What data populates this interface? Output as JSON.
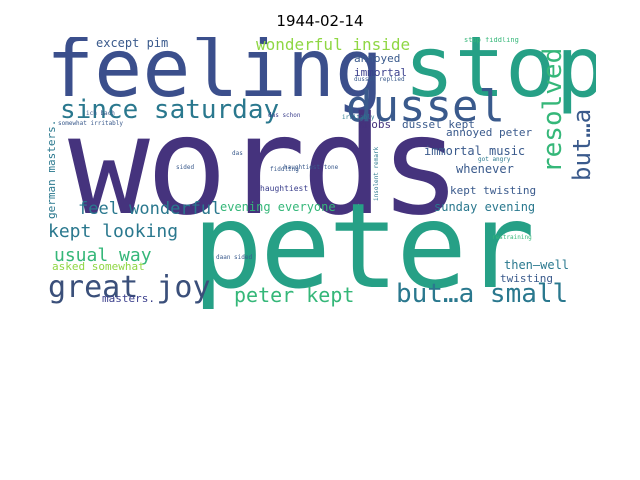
{
  "title": "1944-02-14",
  "palette": {
    "indigo": "#3b3f8c",
    "navy": "#45337d",
    "slate": "#3a5a8c",
    "teal": "#2a788e",
    "sea": "#26a086",
    "green": "#35b779",
    "lime": "#8fd744",
    "yellow": "#c8e020"
  },
  "words": {
    "words": "words",
    "peter": "peter",
    "feeling": "feeling",
    "stop": "stop",
    "dussel": "dussel",
    "since_saturday": "since saturday",
    "but_a_1": "but…a",
    "but_a_2": "but…a small",
    "resolved": "resolved",
    "great_joy": "great joy",
    "peter_kept": "peter kept",
    "kept_looking": "kept looking",
    "feel_wonderful": "feel wonderful",
    "usual_way": "usual way",
    "wonderful_inside": "wonderful inside",
    "except_pim": "except pim",
    "annoyed": "annoyed",
    "immortal": "immortal",
    "dussel_kept": "dussel kept",
    "knobs": "knobs",
    "annoyed_peter": "annoyed peter",
    "immortal_music": "immortal music",
    "whenever": "whenever",
    "kept_twisting": "kept twisting",
    "sunday_evening": "sunday evening",
    "evening_everyone": "evening everyone",
    "then_well": "then—well",
    "twisting": "twisting",
    "asked_somewhat": "asked somewhat",
    "masters": "masters.",
    "german_masters": "german masters.",
    "haughtiest": "haughtiest",
    "haughtiest_tone": "haughtiest tone",
    "fiddling": "fiddling",
    "irritably": "irritably",
    "restraining": "restraining",
    "got_angry": "got angry",
    "das_schon": "das schon",
    "stop_fiddling": "stop fiddling",
    "dussel_replied": "dussel replied",
    "somewhat_irritably": "somewhat irritably",
    "sided": "sided",
    "das": "das",
    "daan_sided": "daan sided",
    "insolent_remark": "insolent remark",
    "ich_bach": "ich bach"
  }
}
